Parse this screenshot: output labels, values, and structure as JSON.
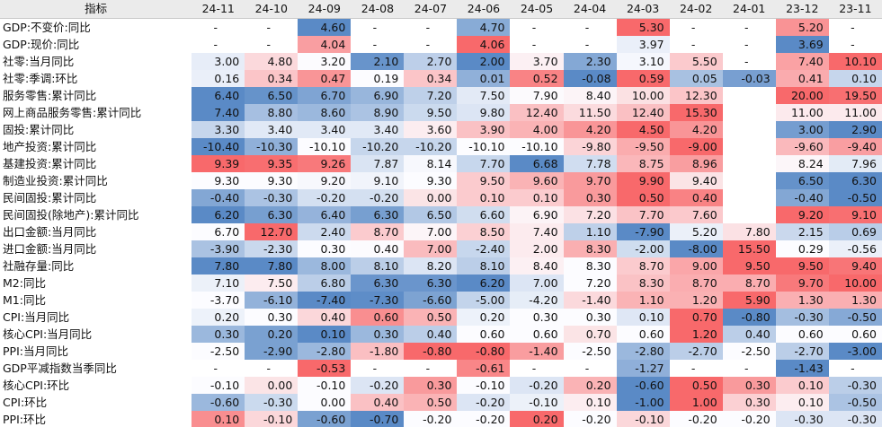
{
  "header": {
    "label": "指标",
    "columns": [
      "24-11",
      "24-10",
      "24-09",
      "24-08",
      "24-07",
      "24-06",
      "24-05",
      "24-04",
      "24-03",
      "24-02",
      "24-01",
      "23-12",
      "23-11"
    ]
  },
  "rows": [
    {
      "label": "GDP:不变价:同比",
      "values": [
        "-",
        "-",
        "4.60",
        "-",
        "-",
        "4.70",
        "-",
        "-",
        "5.30",
        "-",
        "-",
        "5.20",
        "-"
      ]
    },
    {
      "label": "GDP:现价:同比",
      "values": [
        "-",
        "-",
        "4.04",
        "-",
        "-",
        "4.06",
        "-",
        "-",
        "3.97",
        "-",
        "-",
        "3.69",
        "-"
      ]
    },
    {
      "label": "社零:当月同比",
      "values": [
        "3.00",
        "4.80",
        "3.20",
        "2.10",
        "2.70",
        "2.00",
        "3.70",
        "2.30",
        "3.10",
        "5.50",
        "-",
        "7.40",
        "10.10"
      ]
    },
    {
      "label": "社零:季调:环比",
      "values": [
        "0.16",
        "0.34",
        "0.47",
        "0.19",
        "0.34",
        "0.01",
        "0.52",
        "-0.08",
        "0.59",
        "0.05",
        "-0.03",
        "0.41",
        "0.10"
      ]
    },
    {
      "label": "服务零售:累计同比",
      "values": [
        "6.40",
        "6.50",
        "6.70",
        "6.90",
        "7.20",
        "7.50",
        "7.90",
        "8.40",
        "10.00",
        "12.30",
        "",
        "20.00",
        "19.50"
      ]
    },
    {
      "label": "网上商品服务零售:累计同比",
      "values": [
        "7.40",
        "8.80",
        "8.60",
        "8.90",
        "9.50",
        "9.80",
        "12.40",
        "11.50",
        "12.40",
        "15.30",
        "",
        "11.00",
        "11.00"
      ]
    },
    {
      "label": "固投:累计同比",
      "values": [
        "3.30",
        "3.40",
        "3.40",
        "3.40",
        "3.60",
        "3.90",
        "4.00",
        "4.20",
        "4.50",
        "4.20",
        "",
        "3.00",
        "2.90"
      ]
    },
    {
      "label": "地产投资:累计同比",
      "values": [
        "-10.40",
        "-10.30",
        "-10.10",
        "-10.20",
        "-10.20",
        "-10.10",
        "-10.10",
        "-9.80",
        "-9.50",
        "-9.00",
        "",
        "-9.60",
        "-9.40"
      ]
    },
    {
      "label": "基建投资:累计同比",
      "values": [
        "9.39",
        "9.35",
        "9.26",
        "7.87",
        "8.14",
        "7.70",
        "6.68",
        "7.78",
        "8.75",
        "8.96",
        "",
        "8.24",
        "7.96"
      ]
    },
    {
      "label": "制造业投资:累计同比",
      "values": [
        "9.30",
        "9.30",
        "9.20",
        "9.10",
        "9.30",
        "9.50",
        "9.60",
        "9.70",
        "9.90",
        "9.40",
        "",
        "6.50",
        "6.30"
      ]
    },
    {
      "label": "民间固投:累计同比",
      "values": [
        "-0.40",
        "-0.30",
        "-0.20",
        "-0.20",
        "0.00",
        "0.10",
        "0.10",
        "0.30",
        "0.50",
        "0.40",
        "",
        "-0.40",
        "-0.50"
      ]
    },
    {
      "label": "民间固投(除地产):累计同比",
      "values": [
        "6.20",
        "6.30",
        "6.40",
        "6.30",
        "6.50",
        "6.60",
        "6.90",
        "7.20",
        "7.70",
        "7.60",
        "",
        "9.20",
        "9.10"
      ]
    },
    {
      "label": "出口金额:当月同比",
      "values": [
        "6.70",
        "12.70",
        "2.40",
        "8.70",
        "7.00",
        "8.50",
        "7.40",
        "1.10",
        "-7.90",
        "5.20",
        "7.80",
        "2.15",
        "0.69"
      ]
    },
    {
      "label": "进口金额:当月同比",
      "values": [
        "-3.90",
        "-2.30",
        "0.30",
        "0.40",
        "7.00",
        "-2.40",
        "2.00",
        "8.30",
        "-2.00",
        "-8.00",
        "15.50",
        "0.29",
        "-0.56"
      ]
    },
    {
      "label": "社融存量:同比",
      "values": [
        "7.80",
        "7.80",
        "8.00",
        "8.10",
        "8.20",
        "8.10",
        "8.40",
        "8.30",
        "8.70",
        "9.00",
        "9.50",
        "9.50",
        "9.40"
      ]
    },
    {
      "label": "M2:同比",
      "values": [
        "7.10",
        "7.50",
        "6.80",
        "6.30",
        "6.30",
        "6.20",
        "7.00",
        "7.20",
        "8.30",
        "8.70",
        "8.70",
        "9.70",
        "10.00"
      ]
    },
    {
      "label": "M1:同比",
      "values": [
        "-3.70",
        "-6.10",
        "-7.40",
        "-7.30",
        "-6.60",
        "-5.00",
        "-4.20",
        "-1.40",
        "1.10",
        "1.20",
        "5.90",
        "1.30",
        "1.30"
      ]
    },
    {
      "label": "CPI:当月同比",
      "values": [
        "0.20",
        "0.30",
        "0.40",
        "0.60",
        "0.50",
        "0.20",
        "0.30",
        "0.30",
        "0.10",
        "0.70",
        "-0.80",
        "-0.30",
        "-0.50"
      ]
    },
    {
      "label": "核心CPI:当月同比",
      "values": [
        "0.30",
        "0.20",
        "0.10",
        "0.30",
        "0.40",
        "0.60",
        "0.60",
        "0.70",
        "0.60",
        "1.20",
        "0.40",
        "0.60",
        "0.60"
      ]
    },
    {
      "label": "PPI:当月同比",
      "values": [
        "-2.50",
        "-2.90",
        "-2.80",
        "-1.80",
        "-0.80",
        "-0.80",
        "-1.40",
        "-2.50",
        "-2.80",
        "-2.70",
        "-2.50",
        "-2.70",
        "-3.00"
      ]
    },
    {
      "label": "GDP平减指数当季同比",
      "values": [
        "-",
        "-",
        "-0.53",
        "-",
        "-",
        "-0.61",
        "-",
        "-",
        "-1.27",
        "-",
        "-",
        "-1.43",
        "-"
      ]
    },
    {
      "label": "核心CPI:环比",
      "values": [
        "-0.10",
        "0.00",
        "-0.10",
        "-0.20",
        "0.30",
        "-0.10",
        "-0.20",
        "0.20",
        "-0.60",
        "0.50",
        "0.30",
        "0.10",
        "-0.30"
      ]
    },
    {
      "label": "CPI:环比",
      "values": [
        "-0.60",
        "-0.30",
        "0.00",
        "0.40",
        "0.50",
        "-0.20",
        "-0.10",
        "0.10",
        "-1.00",
        "1.00",
        "0.30",
        "0.10",
        "-0.50"
      ]
    },
    {
      "label": "PPI:环比",
      "values": [
        "0.10",
        "-0.10",
        "-0.60",
        "-0.70",
        "-0.20",
        "-0.20",
        "0.20",
        "-0.20",
        "-0.10",
        "-0.20",
        "-0.20",
        "-0.30",
        "-0.30"
      ]
    }
  ],
  "colors": {
    "high": "#f8696b",
    "mid": "#fcfcff",
    "low": "#5a8ac6",
    "header_bg": "#ebebeb"
  }
}
